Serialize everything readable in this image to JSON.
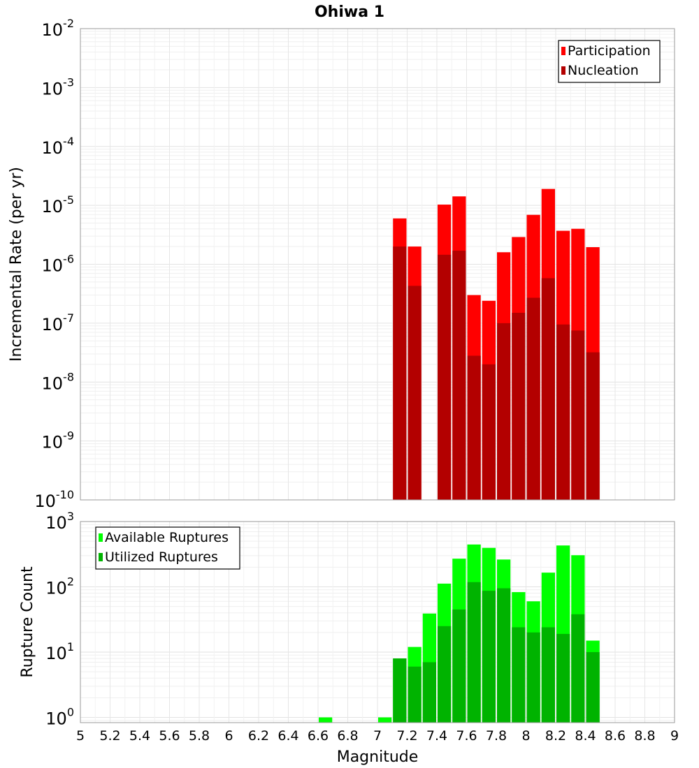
{
  "chart_data": {
    "type": "bar",
    "title": "Ohiwa 1",
    "xlabel": "Magnitude",
    "xlim": [
      5,
      9
    ],
    "x_ticks": [
      5,
      5.2,
      5.4,
      5.6,
      5.8,
      6,
      6.2,
      6.4,
      6.6,
      6.8,
      7,
      7.2,
      7.4,
      7.6,
      7.8,
      8,
      8.2,
      8.4,
      8.6,
      8.8,
      9
    ],
    "x_tick_labels": [
      "5",
      "5.2",
      "5.4",
      "5.6",
      "5.8",
      "6",
      "6.2",
      "6.4",
      "6.6",
      "6.8",
      "7",
      "7.2",
      "7.4",
      "7.6",
      "7.8",
      "8",
      "8.2",
      "8.4",
      "8.6",
      "8.8",
      "9"
    ],
    "bin_width": 0.1,
    "panels": [
      {
        "id": "rate",
        "ylabel": "Incremental Rate (per yr)",
        "yscale": "log",
        "ylim_exponents": [
          -10,
          -2
        ],
        "y_tick_exponents": [
          "-10",
          "-9",
          "-8",
          "-7",
          "-6",
          "-5",
          "-4",
          "-3",
          "-2"
        ],
        "legend_position": "top-right",
        "series": [
          {
            "name": "Participation",
            "color": "#ff0000",
            "x": [
              7.15,
              7.25,
              7.45,
              7.55,
              7.65,
              7.75,
              7.85,
              7.95,
              8.05,
              8.15,
              8.25,
              8.35,
              8.45
            ],
            "values": [
              6e-06,
              2e-06,
              1.03e-05,
              1.42e-05,
              3e-07,
              2.4e-07,
              1.6e-06,
              2.9e-06,
              6.9e-06,
              1.9e-05,
              3.7e-06,
              4e-06,
              1.95e-06
            ]
          },
          {
            "name": "Nucleation",
            "color": "#b30000",
            "x": [
              7.15,
              7.25,
              7.45,
              7.55,
              7.65,
              7.75,
              7.85,
              7.95,
              8.05,
              8.15,
              8.25,
              8.35,
              8.45
            ],
            "values": [
              2e-06,
              4.3e-07,
              1.45e-06,
              1.7e-06,
              2.8e-08,
              2e-08,
              1e-07,
              1.5e-07,
              2.7e-07,
              5.8e-07,
              9.5e-08,
              7.5e-08,
              3.2e-08
            ]
          }
        ]
      },
      {
        "id": "count",
        "ylabel": "Rupture Count",
        "yscale": "log",
        "ylim_exponents": [
          -0.08,
          3
        ],
        "y_tick_exponents": [
          "0",
          "1",
          "2",
          "3"
        ],
        "legend_position": "top-left",
        "series": [
          {
            "name": "Available Ruptures",
            "color": "#00ff00",
            "x": [
              6.65,
              7.05,
              7.15,
              7.25,
              7.35,
              7.45,
              7.55,
              7.65,
              7.75,
              7.85,
              7.95,
              8.05,
              8.15,
              8.25,
              8.35,
              8.45
            ],
            "values": [
              1,
              1,
              8,
              12,
              39,
              112,
              270,
              445,
              395,
              262,
              83,
              60,
              165,
              430,
              305,
              15
            ]
          },
          {
            "name": "Utilized Ruptures",
            "color": "#00b300",
            "x": [
              7.15,
              7.25,
              7.35,
              7.45,
              7.55,
              7.65,
              7.75,
              7.85,
              7.95,
              8.05,
              8.15,
              8.25,
              8.35,
              8.45
            ],
            "values": [
              8,
              6,
              7,
              25,
              45,
              118,
              87,
              95,
              24,
              20,
              24,
              19,
              38,
              10
            ]
          }
        ]
      }
    ]
  }
}
